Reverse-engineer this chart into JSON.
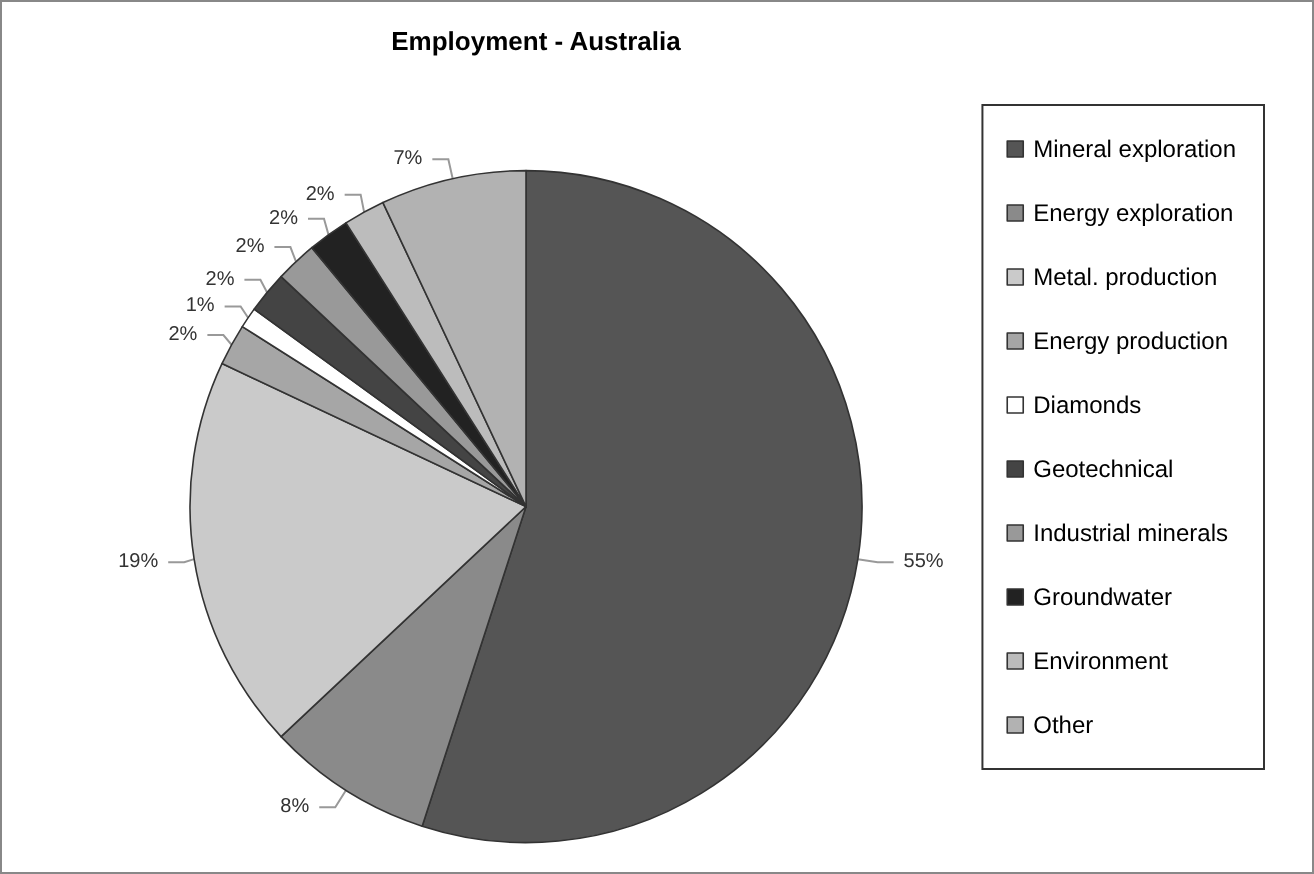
{
  "chart_data": {
    "type": "pie",
    "title": "Employment - Australia",
    "categories": [
      "Mineral exploration",
      "Energy exploration",
      "Metal. production",
      "Energy production",
      "Diamonds",
      "Geotechnical",
      "Industrial minerals",
      "Groundwater",
      "Environment",
      "Other"
    ],
    "values": [
      55,
      8,
      19,
      2,
      1,
      2,
      2,
      2,
      2,
      7
    ],
    "colors": [
      "#555555",
      "#8a8a8a",
      "#cacaca",
      "#a6a6a6",
      "#ffffff",
      "#444444",
      "#999999",
      "#222222",
      "#bcbcbc",
      "#b2b2b2"
    ],
    "value_labels": [
      "55%",
      "8%",
      "19%",
      "2%",
      "1%",
      "2%",
      "2%",
      "2%",
      "2%",
      "7%"
    ],
    "legend": "right"
  }
}
